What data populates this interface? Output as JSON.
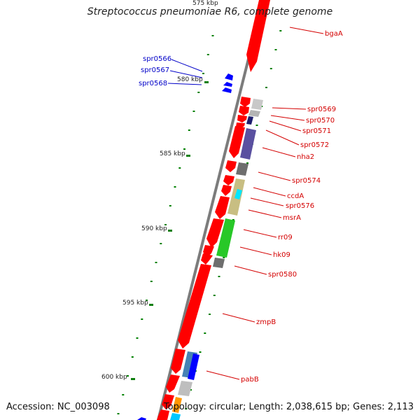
{
  "title": "Streptococcus pneumoniae R6, complete genome",
  "footer": {
    "accession": "Accession: NC_003098",
    "summary": "Topology: circular; Length: 2,038,615 bp; Genes: 2,113"
  },
  "colors": {
    "forward_gene": "#ff0000",
    "reverse_gene": "#0000ff",
    "backbone": "#808080",
    "gc_marks": "#008000",
    "label_forward": "#d40000",
    "label_reverse": "#0000c8"
  },
  "scale": {
    "top_partial_label": "575 kbp",
    "ticks": [
      "580 kbp",
      "585 kbp",
      "590 kbp",
      "595 kbp",
      "600 kbp"
    ]
  },
  "gene_labels": [
    {
      "text": "bgaA",
      "strand": "forward"
    },
    {
      "text": "spr0566",
      "strand": "reverse"
    },
    {
      "text": "spr0567",
      "strand": "reverse"
    },
    {
      "text": "spr0568",
      "strand": "reverse"
    },
    {
      "text": "spr0569",
      "strand": "forward"
    },
    {
      "text": "spr0570",
      "strand": "forward"
    },
    {
      "text": "spr0571",
      "strand": "forward"
    },
    {
      "text": "spr0572",
      "strand": "forward"
    },
    {
      "text": "nha2",
      "strand": "forward"
    },
    {
      "text": "spr0574",
      "strand": "forward"
    },
    {
      "text": "ccdA",
      "strand": "forward"
    },
    {
      "text": "spr0576",
      "strand": "forward"
    },
    {
      "text": "msrA",
      "strand": "forward"
    },
    {
      "text": "rr09",
      "strand": "forward"
    },
    {
      "text": "hk09",
      "strand": "forward"
    },
    {
      "text": "spr0580",
      "strand": "forward"
    },
    {
      "text": "zmpB",
      "strand": "forward"
    },
    {
      "text": "pabB",
      "strand": "forward"
    }
  ]
}
